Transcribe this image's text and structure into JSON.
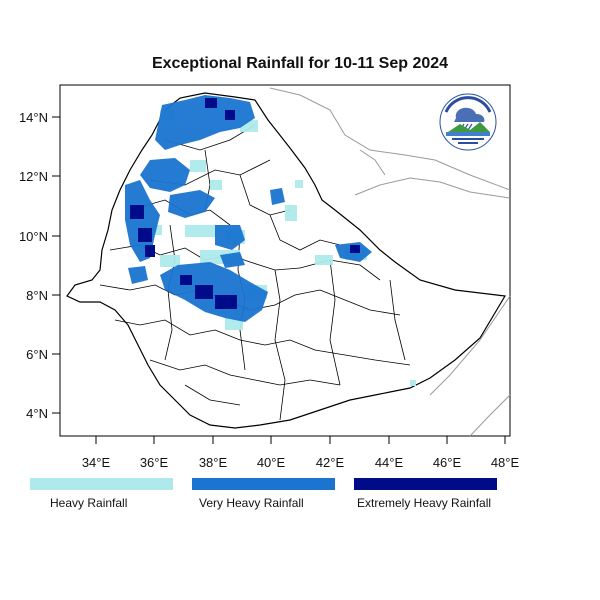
{
  "title": "Exceptional Rainfall for 10-11 Sep 2024",
  "axes": {
    "lat_ticks": [
      "4°N",
      "6°N",
      "8°N",
      "10°N",
      "12°N",
      "14°N"
    ],
    "lon_ticks": [
      "34°E",
      "36°E",
      "38°E",
      "40°E",
      "42°E",
      "44°E",
      "46°E",
      "48°E"
    ]
  },
  "legend": [
    {
      "label": "Heavy Rainfall",
      "color": "#aeeaec"
    },
    {
      "label": "Very Heavy Rainfall",
      "color": "#1a74d0"
    },
    {
      "label": "Extremely Heavy Rainfall",
      "color": "#000b8a"
    }
  ],
  "logo": {
    "icon": "meteorology-agency-logo-icon"
  },
  "map": {
    "region": "Ethiopia",
    "lat_range": [
      3.2,
      15
    ],
    "lon_range": [
      32.8,
      48.2
    ]
  }
}
